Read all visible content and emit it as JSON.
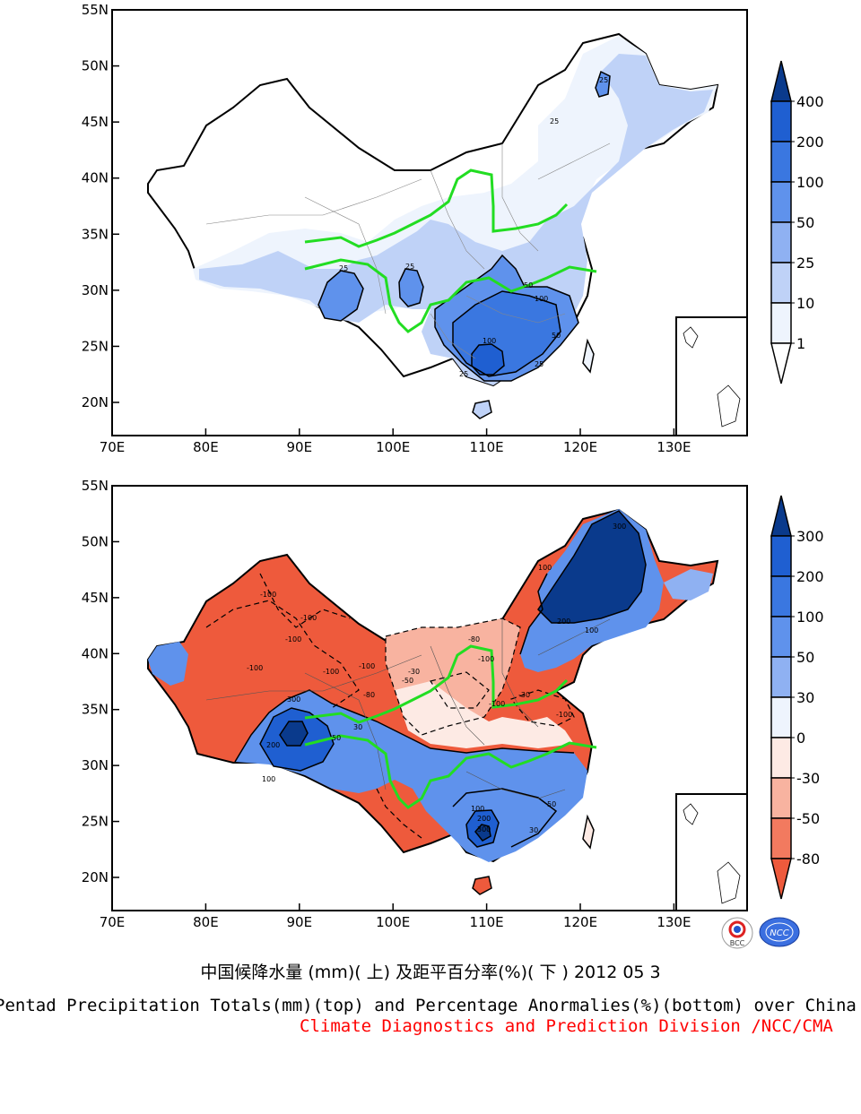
{
  "maps": [
    {
      "id": "totals",
      "lat_ticks": [
        "55N",
        "50N",
        "45N",
        "40N",
        "35N",
        "30N",
        "25N",
        "20N"
      ],
      "lon_ticks": [
        "70E",
        "80E",
        "90E",
        "100E",
        "110E",
        "120E",
        "130E"
      ],
      "colorbar": {
        "labels": [
          "400",
          "200",
          "100",
          "50",
          "25",
          "10",
          "1"
        ],
        "colors": [
          "#0a3a8c",
          "#1f5fd1",
          "#3a77e0",
          "#5f92ec",
          "#8fb1f2",
          "#bfd2f7",
          "#eef4fd",
          "#ffffff"
        ]
      },
      "contour_labels": [
        "25",
        "25",
        "25",
        "25",
        "50",
        "100",
        "100",
        "50",
        "25",
        "25"
      ]
    },
    {
      "id": "anomaly",
      "lat_ticks": [
        "55N",
        "50N",
        "45N",
        "40N",
        "35N",
        "30N",
        "25N",
        "20N"
      ],
      "lon_ticks": [
        "70E",
        "80E",
        "90E",
        "100E",
        "110E",
        "120E",
        "130E"
      ],
      "colorbar": {
        "labels": [
          "300",
          "200",
          "100",
          "50",
          "30",
          "0",
          "-30",
          "-50",
          "-80"
        ],
        "colors": [
          "#0a3a8c",
          "#1f5fd1",
          "#3a77e0",
          "#5f92ec",
          "#8fb1f2",
          "#eef4fd",
          "#fdeae4",
          "#f8b3a0",
          "#f27a5f",
          "#ee5a3c"
        ]
      },
      "contour_labels": [
        "300",
        "300",
        "200",
        "100",
        "-100",
        "-100",
        "-100",
        "-100",
        "-100",
        "-100",
        "-80",
        "-50",
        "-30",
        "50",
        "30",
        "100",
        "200",
        "300",
        "200",
        "100",
        "100",
        "50",
        "30",
        "-100",
        "-80",
        "-100",
        "-100",
        "-30"
      ]
    }
  ],
  "captions": {
    "cn": "中国候降水量 (mm)( 上) 及距平百分率(%)( 下 ) 2012 05 3",
    "en": "Pentad Precipitation Totals(mm)(top) and Percentage Anormalies(%)(bottom) over China",
    "credit": "Climate Diagnostics and Prediction Division /NCC/CMA"
  },
  "logos": [
    {
      "name": "bcc-logo",
      "text": "BCC"
    },
    {
      "name": "ncc-logo",
      "text": "NCC"
    }
  ]
}
